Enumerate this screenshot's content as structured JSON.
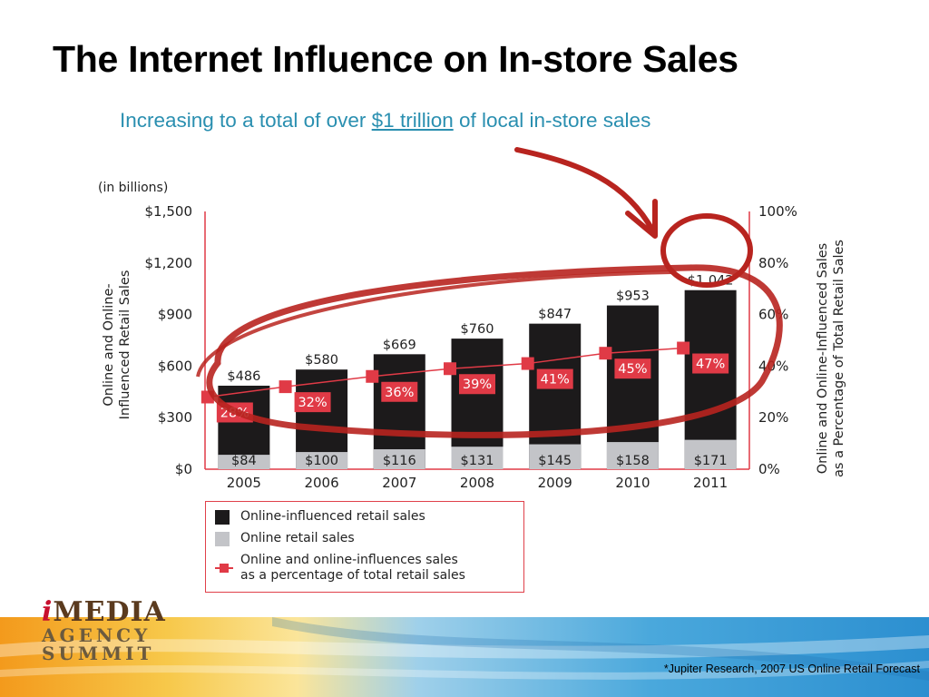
{
  "slide": {
    "title": "The Internet Influence on In-store Sales",
    "subtitle_before": "Increasing to a total of over ",
    "subtitle_link": "$1 trillion",
    "subtitle_after": " of local in-store sales",
    "source": "*Jupiter Research, 2007 US Online Retail Forecast",
    "logo": {
      "line1_i": "i",
      "line1_rest": "MEDIA",
      "line2": "AGENCY",
      "line3": "SUMMIT"
    }
  },
  "chart_data": {
    "type": "bar",
    "unit_label": "(in billions)",
    "ylabel": "Online and Online-Influenced Retail Sales",
    "y2label": "Online and Online-Influenced Sales as a Percentage of Total Retail Sales",
    "categories": [
      "2005",
      "2006",
      "2007",
      "2008",
      "2009",
      "2010",
      "2011"
    ],
    "ylim": [
      0,
      1500
    ],
    "yticks": [
      "$0",
      "$300",
      "$600",
      "$900",
      "$1,200",
      "$1,500"
    ],
    "y2lim": [
      0,
      100
    ],
    "y2ticks": [
      "0%",
      "20%",
      "40%",
      "60%",
      "80%",
      "100%"
    ],
    "series": [
      {
        "name": "Online-influenced retail sales",
        "kind": "stacked-bar-total",
        "values": [
          486,
          580,
          669,
          760,
          847,
          953,
          1042
        ],
        "labels": [
          "$486",
          "$580",
          "$669",
          "$760",
          "$847",
          "$953",
          "$1,042"
        ],
        "color": "#1c1a1b"
      },
      {
        "name": "Online retail sales",
        "kind": "stacked-bar-base",
        "values": [
          84,
          100,
          116,
          131,
          145,
          158,
          171
        ],
        "labels": [
          "$84",
          "$100",
          "$116",
          "$131",
          "$145",
          "$158",
          "$171"
        ],
        "color": "#c3c4c8"
      },
      {
        "name": "Online and online-influences sales as a percentage of total retail sales",
        "kind": "line-secondary-axis",
        "values": [
          28,
          32,
          36,
          39,
          41,
          45,
          47
        ],
        "labels": [
          "28%",
          "32%",
          "36%",
          "39%",
          "41%",
          "45%",
          "47%"
        ],
        "color": "#e03a46"
      }
    ],
    "legend": {
      "placement": "bottom-left",
      "items": [
        "Online-influenced retail sales",
        "Online retail sales",
        "Online and online-influences sales\nas a percentage of total retail sales"
      ]
    },
    "annotation_color": "#b8241f"
  }
}
